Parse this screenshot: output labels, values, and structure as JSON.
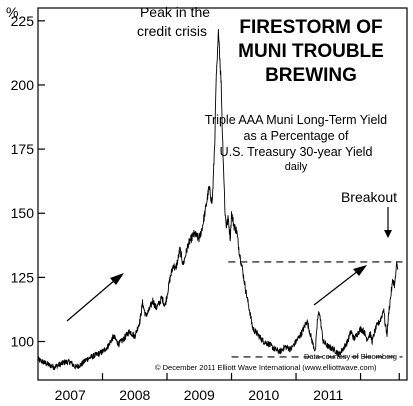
{
  "chart_data": {
    "type": "line",
    "title": [
      "FIRESTORM OF",
      "MUNI TROUBLE",
      "BREWING"
    ],
    "subtitle": [
      "Triple AAA Muni Long-Term Yield",
      "as a Percentage of",
      "U.S. Treasury 30-year Yield",
      "daily"
    ],
    "ylabel": "%",
    "ylim": [
      85,
      230
    ],
    "yticks": [
      100,
      125,
      150,
      175,
      200,
      225
    ],
    "xlim": [
      2006.0,
      2011.72
    ],
    "xtick_positions": [
      2007,
      2008,
      2009,
      2010,
      2011,
      2011.6
    ],
    "xtick_labels": [
      "2007",
      "2008",
      "2009",
      "2010",
      "2011"
    ],
    "xtick_label_positions": [
      2006.5,
      2007.5,
      2008.5,
      2009.5,
      2010.5,
      2011.3
    ],
    "grid": false,
    "series": [
      {
        "name": "",
        "x": [
          2006.0,
          2006.08,
          2006.16,
          2006.25,
          2006.33,
          2006.42,
          2006.5,
          2006.58,
          2006.67,
          2006.75,
          2006.83,
          2006.92,
          2007.0,
          2007.08,
          2007.17,
          2007.25,
          2007.33,
          2007.42,
          2007.5,
          2007.58,
          2007.62,
          2007.67,
          2007.72,
          2007.78,
          2007.83,
          2007.88,
          2007.92,
          2007.97,
          2008.0,
          2008.05,
          2008.1,
          2008.13,
          2008.17,
          2008.2,
          2008.25,
          2008.33,
          2008.42,
          2008.5,
          2008.55,
          2008.6,
          2008.65,
          2008.7,
          2008.72,
          2008.74,
          2008.76,
          2008.78,
          2008.8,
          2008.82,
          2008.84,
          2008.86,
          2008.88,
          2008.9,
          2008.92,
          2008.95,
          2008.98,
          2009.0,
          2009.04,
          2009.08,
          2009.12,
          2009.17,
          2009.22,
          2009.28,
          2009.33,
          2009.4,
          2009.46,
          2009.5,
          2009.58,
          2009.67,
          2009.75,
          2009.83,
          2009.92,
          2010.0,
          2010.08,
          2010.17,
          2010.25,
          2010.3,
          2010.33,
          2010.36,
          2010.42,
          2010.5,
          2010.58,
          2010.67,
          2010.75,
          2010.8,
          2010.85,
          2010.9,
          2010.95,
          2011.0,
          2011.05,
          2011.1,
          2011.15,
          2011.18,
          2011.2,
          2011.22,
          2011.25,
          2011.3,
          2011.33,
          2011.36,
          2011.38,
          2011.41,
          2011.44,
          2011.47,
          2011.5,
          2011.53,
          2011.56,
          2011.58
        ],
        "y": [
          93,
          92,
          91,
          90,
          91,
          92,
          92,
          90,
          91,
          93,
          94,
          95,
          96,
          98,
          102,
          99,
          101,
          104,
          102,
          108,
          115,
          110,
          112,
          116,
          113,
          115,
          117,
          114,
          118,
          125,
          130,
          128,
          132,
          136,
          130,
          138,
          142,
          140,
          145,
          152,
          160,
          154,
          165,
          178,
          200,
          210,
          222,
          210,
          200,
          180,
          165,
          150,
          145,
          148,
          140,
          150,
          145,
          143,
          135,
          128,
          120,
          112,
          105,
          103,
          101,
          100,
          99,
          97,
          96,
          98,
          97,
          100,
          103,
          108,
          100,
          96,
          108,
          112,
          100,
          98,
          97,
          95,
          98,
          100,
          104,
          101,
          103,
          105,
          104,
          101,
          103,
          100,
          102,
          104,
          106,
          108,
          110,
          113,
          107,
          103,
          112,
          118,
          124,
          122,
          130,
          128
        ]
      }
    ],
    "reference_lines": [
      {
        "y": 131,
        "x_start": 2008.95,
        "x_end": 2011.65,
        "style": "dashed"
      },
      {
        "y": 94,
        "x_start": 2009.0,
        "x_end": 2011.65,
        "style": "dashed"
      }
    ],
    "annotations": [
      {
        "text": [
          "Peak in the",
          "credit crisis"
        ]
      },
      {
        "text": [
          "Breakout"
        ]
      }
    ],
    "credits": [
      "Data courtesy of Bloomberg",
      "© December 2011 Elliott Wave International (www.elliottwave.com)"
    ]
  }
}
